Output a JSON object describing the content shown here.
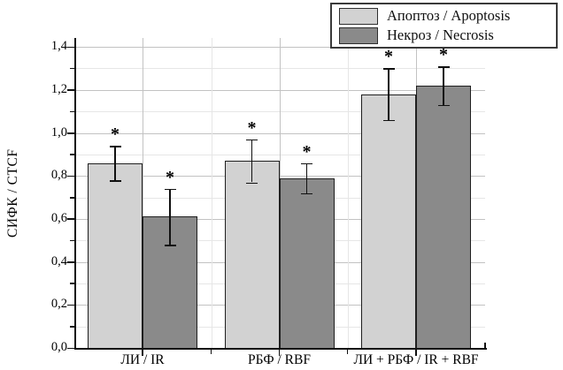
{
  "chart_data": {
    "type": "bar",
    "title": "",
    "xlabel": "",
    "ylabel": "СИФК / CTCF",
    "ylim": [
      0,
      1.4
    ],
    "y_major_step": 0.2,
    "y_minor_step": 0.1,
    "decimal_separator": ",",
    "grid": true,
    "legend_position": "top-right",
    "y_tick_labels": [
      "0,0",
      "0,2",
      "0,4",
      "0,6",
      "0,8",
      "1,0",
      "1,2",
      "1,4"
    ],
    "categories": [
      "ЛИ / IR",
      "РБФ / RBF",
      "ЛИ + РБФ / IR + RBF"
    ],
    "series": [
      {
        "name": "Апоптоз / Apoptosis",
        "color": "#d2d2d2",
        "values": [
          0.86,
          0.87,
          1.18
        ],
        "error_low": [
          0.78,
          0.77,
          1.06
        ],
        "error_high": [
          0.94,
          0.97,
          1.3
        ],
        "significance": [
          "*",
          "*",
          "*"
        ]
      },
      {
        "name": "Некроз / Necrosis",
        "color": "#8a8a8a",
        "values": [
          0.61,
          0.79,
          1.22
        ],
        "error_low": [
          0.48,
          0.72,
          1.13
        ],
        "error_high": [
          0.74,
          0.86,
          1.31
        ],
        "significance": [
          "*",
          "*",
          "*"
        ]
      }
    ]
  },
  "colors": {
    "background": "#ffffff",
    "axis": "#111111",
    "bar_outline": "#1f1f1f",
    "major_grid": "#c2c2c2",
    "minor_grid": "#e6e6e6",
    "text": "#000000"
  }
}
